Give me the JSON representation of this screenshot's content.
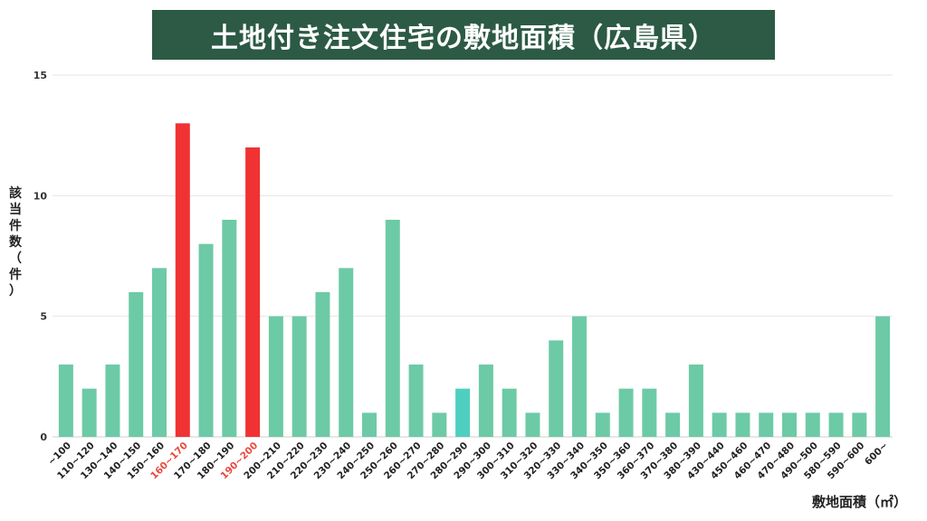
{
  "title": "土地付き注文住宅の敷地面積（広島県）",
  "colors": {
    "title_bg": "#2c5a45",
    "bar_default": "#6dcaa6",
    "bar_highlight": "#f03232",
    "bar_alt": "#4fcfc0",
    "label_highlight": "#e8493f"
  },
  "chart_data": {
    "type": "bar",
    "title": "土地付き注文住宅の敷地面積（広島県）",
    "xlabel": "敷地面積（㎡）",
    "ylabel": "該当件数（件）",
    "ylim": [
      0,
      15
    ],
    "yticks": [
      0,
      5,
      10,
      15
    ],
    "grid": true,
    "categories": [
      "~100",
      "110~120",
      "130~140",
      "140~150",
      "150~160",
      "160~170",
      "170~180",
      "180~190",
      "190~200",
      "200~210",
      "210~220",
      "220~230",
      "230~240",
      "240~250",
      "250~260",
      "260~270",
      "270~280",
      "280~290",
      "290~300",
      "300~310",
      "310~320",
      "320~330",
      "330~340",
      "340~350",
      "350~360",
      "360~370",
      "370~380",
      "380~390",
      "430~440",
      "450~460",
      "460~470",
      "470~480",
      "490~500",
      "580~590",
      "590~600",
      "600~"
    ],
    "values": [
      3,
      2,
      3,
      6,
      7,
      13,
      8,
      9,
      12,
      5,
      5,
      6,
      7,
      1,
      9,
      3,
      1,
      2,
      3,
      2,
      1,
      4,
      5,
      1,
      2,
      2,
      1,
      3,
      1,
      1,
      1,
      1,
      1,
      1,
      1,
      5
    ],
    "highlighted": [
      "160~170",
      "190~200"
    ],
    "alt_colored": [
      "280~290"
    ]
  }
}
